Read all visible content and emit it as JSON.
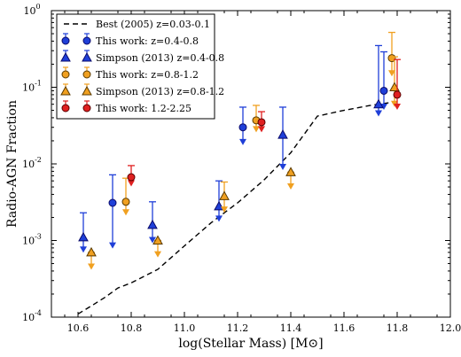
{
  "chart_data": {
    "type": "scatter",
    "title": "",
    "xlabel": "log(Stellar Mass) [M⊙]",
    "ylabel": "Radio-AGN Fraction",
    "xlim": [
      10.5,
      12.0
    ],
    "ylim_log10": [
      -4,
      0
    ],
    "y_scale": "log",
    "x_ticks": [
      "10.6",
      "10.8",
      "11.0",
      "11.2",
      "11.4",
      "11.6",
      "11.8",
      "12.0"
    ],
    "y_ticks": [
      {
        "base": "10",
        "exp": "-4"
      },
      {
        "base": "10",
        "exp": "-3"
      },
      {
        "base": "10",
        "exp": "-2"
      },
      {
        "base": "10",
        "exp": "-1"
      },
      {
        "base": "10",
        "exp": "0"
      }
    ],
    "legend_position": "top-left",
    "reference_line": {
      "name": "Best (2005) z=0.03-0.1",
      "style": "dashed",
      "color": "#000000",
      "x": [
        10.6,
        10.65,
        10.7,
        10.75,
        10.8,
        10.9,
        11.0,
        11.1,
        11.2,
        11.3,
        11.4,
        11.5,
        11.6,
        11.7,
        11.8
      ],
      "y": [
        0.00011,
        0.00014,
        0.00018,
        0.00024,
        0.00028,
        0.00042,
        0.00085,
        0.0017,
        0.0031,
        0.0062,
        0.014,
        0.042,
        0.05,
        0.058,
        0.065
      ]
    },
    "series": [
      {
        "name": "This work: z=0.4-0.8",
        "marker": "circle",
        "color": "#1f3fd8",
        "edge": "#0a0a6a",
        "points": [
          {
            "x": 10.73,
            "y": 0.0031,
            "err_hi": 0.0072,
            "upper_limit": 0.00085
          },
          {
            "x": 11.22,
            "y": 0.03,
            "err_hi": 0.055,
            "upper_limit": 0.019
          },
          {
            "x": 11.75,
            "y": 0.09,
            "err_hi": 0.29,
            "upper_limit": 0.055
          }
        ]
      },
      {
        "name": "Simpson (2013) z=0.4-0.8",
        "marker": "triangle",
        "color": "#1f3fd8",
        "edge": "#0a0a6a",
        "points": [
          {
            "x": 10.62,
            "y": 0.0011,
            "err_hi": 0.0023,
            "upper_limit": 0.00075
          },
          {
            "x": 10.88,
            "y": 0.0016,
            "err_hi": 0.0032,
            "upper_limit": 0.001
          },
          {
            "x": 11.13,
            "y": 0.0028,
            "err_hi": 0.006,
            "upper_limit": 0.0019
          },
          {
            "x": 11.37,
            "y": 0.024,
            "err_hi": 0.055,
            "upper_limit": 0.009
          },
          {
            "x": 11.73,
            "y": 0.06,
            "err_hi": 0.35,
            "upper_limit": 0.045
          }
        ]
      },
      {
        "name": "This work: z=0.8-1.2",
        "marker": "circle",
        "color": "#f0a020",
        "edge": "#5a3a00",
        "points": [
          {
            "x": 10.78,
            "y": 0.0032,
            "err_hi": 0.0065,
            "upper_limit": 0.0023
          },
          {
            "x": 11.27,
            "y": 0.037,
            "err_hi": 0.058,
            "upper_limit": 0.028
          },
          {
            "x": 11.78,
            "y": 0.24,
            "err_hi": 0.52,
            "upper_limit": 0.15
          }
        ]
      },
      {
        "name": "Simpson (2013) z=0.8-1.2",
        "marker": "triangle",
        "color": "#f0a020",
        "edge": "#5a3a00",
        "points": [
          {
            "x": 10.65,
            "y": 0.0007,
            "err_hi": 0.0007,
            "upper_limit": 0.00045
          },
          {
            "x": 10.9,
            "y": 0.001,
            "err_hi": 0.001,
            "upper_limit": 0.00065
          },
          {
            "x": 11.15,
            "y": 0.0038,
            "err_hi": 0.0058,
            "upper_limit": 0.0025
          },
          {
            "x": 11.4,
            "y": 0.0078,
            "err_hi": 0.0078,
            "upper_limit": 0.005
          },
          {
            "x": 11.79,
            "y": 0.1,
            "err_hi": 0.25,
            "upper_limit": 0.06
          }
        ]
      },
      {
        "name": "This work: 1.2-2.25",
        "marker": "circle",
        "color": "#e02020",
        "edge": "#5a0000",
        "points": [
          {
            "x": 10.8,
            "y": 0.0067,
            "err_hi": 0.0095,
            "upper_limit": 0.0055
          },
          {
            "x": 11.29,
            "y": 0.035,
            "err_hi": 0.048,
            "upper_limit": 0.028
          },
          {
            "x": 11.8,
            "y": 0.08,
            "err_hi": 0.23,
            "upper_limit": 0.055
          }
        ]
      }
    ]
  }
}
